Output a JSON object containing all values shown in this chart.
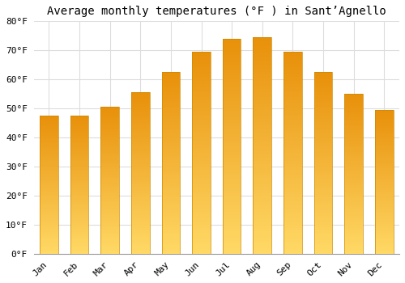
{
  "title": "Average monthly temperatures (°F ) in Sant’Agnello",
  "months": [
    "Jan",
    "Feb",
    "Mar",
    "Apr",
    "May",
    "Jun",
    "Jul",
    "Aug",
    "Sep",
    "Oct",
    "Nov",
    "Dec"
  ],
  "values": [
    47.5,
    47.5,
    50.5,
    55.5,
    62.5,
    69.5,
    74.0,
    74.5,
    69.5,
    62.5,
    55.0,
    49.5
  ],
  "bar_color_bottom": "#FFD966",
  "bar_color_top": "#E8900A",
  "ylim": [
    0,
    80
  ],
  "ytick_step": 10,
  "background_color": "#FFFFFF",
  "grid_color": "#DDDDDD",
  "title_fontsize": 10,
  "tick_fontsize": 8,
  "font_family": "monospace",
  "bar_width": 0.6
}
